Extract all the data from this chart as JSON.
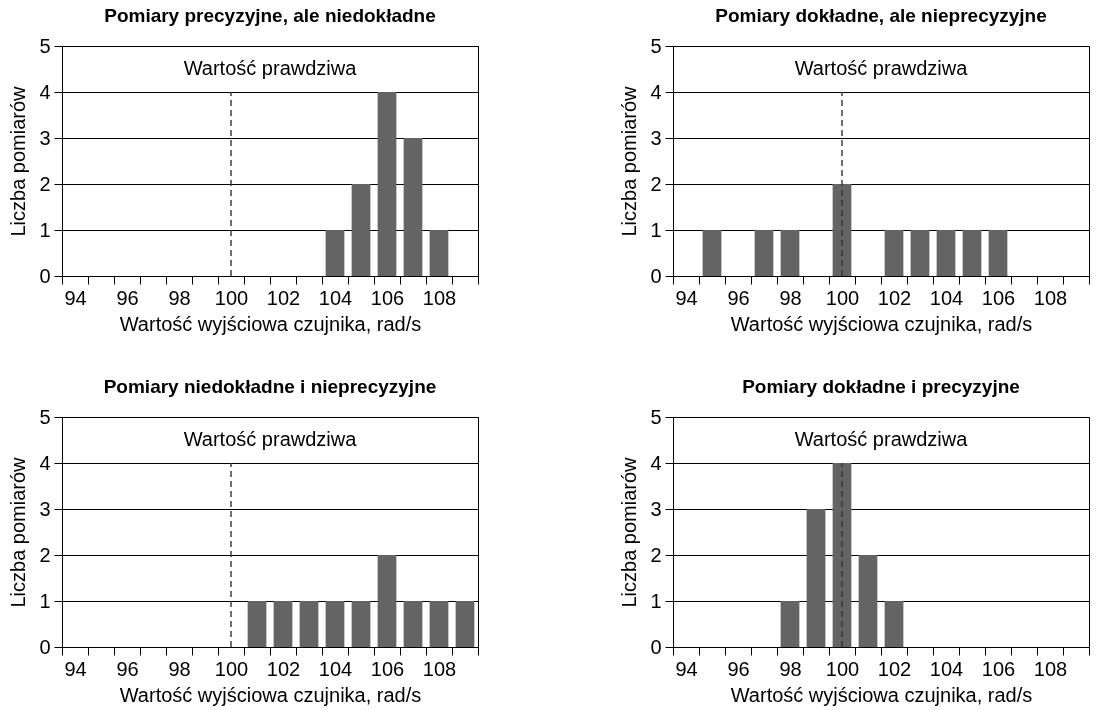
{
  "chart_data": [
    {
      "type": "bar",
      "title": "Pomiary precyzyjne, ale niedokładne",
      "xlabel": "Wartość wyjściowa czujnika, rad/s",
      "ylabel": "Liczba pomiarów",
      "x": [
        104,
        105,
        106,
        107,
        108
      ],
      "values": [
        1,
        2,
        4,
        3,
        1
      ],
      "color": "#646464",
      "xlim": [
        93.5,
        109.5
      ],
      "xticks": [
        {
          "value": 93.5,
          "label": null
        },
        94,
        {
          "value": 94.5,
          "label": null
        },
        {
          "value": 95.5,
          "label": null
        },
        96,
        {
          "value": 96.5,
          "label": null
        },
        {
          "value": 97.5,
          "label": null
        },
        98,
        {
          "value": 98.5,
          "label": null
        },
        {
          "value": 99.5,
          "label": null
        },
        100,
        {
          "value": 100.5,
          "label": null
        },
        {
          "value": 101.5,
          "label": null
        },
        102,
        {
          "value": 102.5,
          "label": null
        },
        {
          "value": 103.5,
          "label": null
        },
        104,
        {
          "value": 104.5,
          "label": null
        },
        {
          "value": 105.5,
          "label": null
        },
        106,
        {
          "value": 106.5,
          "label": null
        },
        {
          "value": 107.5,
          "label": null
        },
        108,
        {
          "value": 108.5,
          "label": null
        },
        {
          "value": 109.5,
          "label": null
        }
      ],
      "ylim": [
        0,
        5
      ],
      "yticks": [
        0,
        1,
        2,
        3,
        4,
        5
      ],
      "grid": "y",
      "ref_lines": [
        {
          "axis": "x",
          "value": 100,
          "label": "Wartość prawdziwa",
          "color": "#333333",
          "line_style": "dashed"
        }
      ]
    },
    {
      "type": "bar",
      "title": "Pomiary dokładne, ale nieprecyzyjne",
      "xlabel": "Wartość wyjściowa czujnika, rad/s",
      "ylabel": "Liczba pomiarów",
      "x": [
        95,
        97,
        98,
        100,
        102,
        103,
        104,
        105,
        106
      ],
      "values": [
        1,
        1,
        1,
        2,
        1,
        1,
        1,
        1,
        1
      ],
      "color": "#646464",
      "xlim": [
        93.5,
        109.5
      ],
      "xticks": [
        {
          "value": 93.5,
          "label": null
        },
        94,
        {
          "value": 94.5,
          "label": null
        },
        {
          "value": 95.5,
          "label": null
        },
        96,
        {
          "value": 96.5,
          "label": null
        },
        {
          "value": 97.5,
          "label": null
        },
        98,
        {
          "value": 98.5,
          "label": null
        },
        {
          "value": 99.5,
          "label": null
        },
        100,
        {
          "value": 100.5,
          "label": null
        },
        {
          "value": 101.5,
          "label": null
        },
        102,
        {
          "value": 102.5,
          "label": null
        },
        {
          "value": 103.5,
          "label": null
        },
        104,
        {
          "value": 104.5,
          "label": null
        },
        {
          "value": 105.5,
          "label": null
        },
        106,
        {
          "value": 106.5,
          "label": null
        },
        {
          "value": 107.5,
          "label": null
        },
        108,
        {
          "value": 108.5,
          "label": null
        },
        {
          "value": 109.5,
          "label": null
        }
      ],
      "ylim": [
        0,
        5
      ],
      "yticks": [
        0,
        1,
        2,
        3,
        4,
        5
      ],
      "grid": "y",
      "ref_lines": [
        {
          "axis": "x",
          "value": 100,
          "label": "Wartość prawdziwa",
          "color": "#333333",
          "line_style": "dashed"
        }
      ]
    },
    {
      "type": "bar",
      "title": "Pomiary niedokładne i nieprecyzyjne",
      "xlabel": "Wartość wyjściowa czujnika, rad/s",
      "ylabel": "Liczba pomiarów",
      "x": [
        101,
        102,
        103,
        104,
        105,
        106,
        107,
        108,
        109
      ],
      "values": [
        1,
        1,
        1,
        1,
        1,
        2,
        1,
        1,
        1
      ],
      "color": "#646464",
      "xlim": [
        93.5,
        109.5
      ],
      "xticks": [
        {
          "value": 93.5,
          "label": null
        },
        94,
        {
          "value": 94.5,
          "label": null
        },
        {
          "value": 95.5,
          "label": null
        },
        96,
        {
          "value": 96.5,
          "label": null
        },
        {
          "value": 97.5,
          "label": null
        },
        98,
        {
          "value": 98.5,
          "label": null
        },
        {
          "value": 99.5,
          "label": null
        },
        100,
        {
          "value": 100.5,
          "label": null
        },
        {
          "value": 101.5,
          "label": null
        },
        102,
        {
          "value": 102.5,
          "label": null
        },
        {
          "value": 103.5,
          "label": null
        },
        104,
        {
          "value": 104.5,
          "label": null
        },
        {
          "value": 105.5,
          "label": null
        },
        106,
        {
          "value": 106.5,
          "label": null
        },
        {
          "value": 107.5,
          "label": null
        },
        108,
        {
          "value": 108.5,
          "label": null
        },
        {
          "value": 109.5,
          "label": null
        }
      ],
      "ylim": [
        0,
        5
      ],
      "yticks": [
        0,
        1,
        2,
        3,
        4,
        5
      ],
      "grid": "y",
      "ref_lines": [
        {
          "axis": "x",
          "value": 100,
          "label": "Wartość prawdziwa",
          "color": "#333333",
          "line_style": "dashed"
        }
      ]
    },
    {
      "type": "bar",
      "title": "Pomiary dokładne i precyzyjne",
      "xlabel": "Wartość wyjściowa czujnika, rad/s",
      "ylabel": "Liczba pomiarów",
      "x": [
        98,
        99,
        100,
        101,
        102
      ],
      "values": [
        1,
        3,
        4,
        2,
        1
      ],
      "color": "#646464",
      "xlim": [
        93.5,
        109.5
      ],
      "xticks": [
        {
          "value": 93.5,
          "label": null
        },
        94,
        {
          "value": 94.5,
          "label": null
        },
        {
          "value": 95.5,
          "label": null
        },
        96,
        {
          "value": 96.5,
          "label": null
        },
        {
          "value": 97.5,
          "label": null
        },
        98,
        {
          "value": 98.5,
          "label": null
        },
        {
          "value": 99.5,
          "label": null
        },
        100,
        {
          "value": 100.5,
          "label": null
        },
        {
          "value": 101.5,
          "label": null
        },
        102,
        {
          "value": 102.5,
          "label": null
        },
        {
          "value": 103.5,
          "label": null
        },
        104,
        {
          "value": 104.5,
          "label": null
        },
        {
          "value": 105.5,
          "label": null
        },
        106,
        {
          "value": 106.5,
          "label": null
        },
        {
          "value": 107.5,
          "label": null
        },
        108,
        {
          "value": 108.5,
          "label": null
        },
        {
          "value": 109.5,
          "label": null
        }
      ],
      "ylim": [
        0,
        5
      ],
      "yticks": [
        0,
        1,
        2,
        3,
        4,
        5
      ],
      "grid": "y",
      "ref_lines": [
        {
          "axis": "x",
          "value": 100,
          "label": "Wartość prawdziwa",
          "color": "#333333",
          "line_style": "dashed"
        }
      ]
    }
  ]
}
